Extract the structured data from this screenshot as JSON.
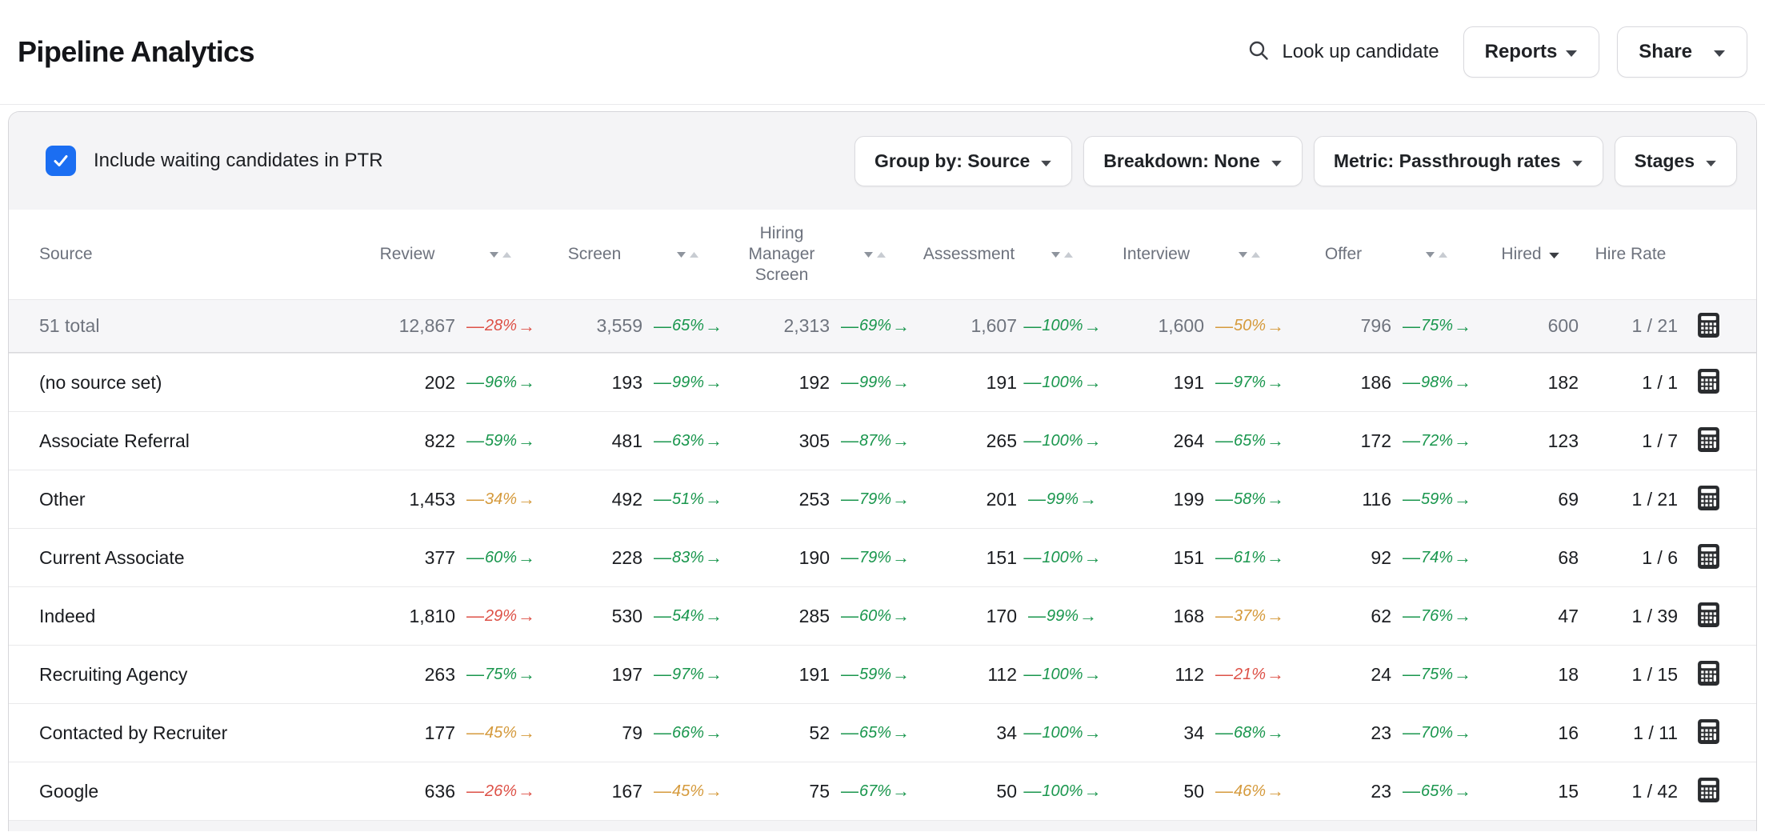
{
  "header": {
    "title": "Pipeline Analytics",
    "search_label": "Look up candidate",
    "reports_label": "Reports",
    "share_label": "Share"
  },
  "filters": {
    "checkbox_label": "Include waiting candidates in PTR",
    "checkbox_checked": true,
    "dropdowns": [
      {
        "label": "Group by: Source"
      },
      {
        "label": "Breakdown: None"
      },
      {
        "label": "Metric: Passthrough rates"
      },
      {
        "label": "Stages"
      }
    ]
  },
  "table": {
    "headers": {
      "source": "Source",
      "stages": [
        "Review",
        "Screen",
        "Hiring Manager Screen",
        "Assessment",
        "Interview",
        "Offer",
        "Hired"
      ],
      "hire_rate": "Hire Rate"
    },
    "sort": {
      "column": "Hired",
      "direction": "desc"
    },
    "tone_colors": {
      "green": "#19964d",
      "orange": "#d59a3c",
      "red": "#dd5147"
    },
    "rows": [
      {
        "source": "51 total",
        "total": true,
        "values": [
          "12,867",
          "3,559",
          "2,313",
          "1,607",
          "1,600",
          "796",
          "600"
        ],
        "ptrs": [
          {
            "pct": "28%",
            "tone": "red"
          },
          {
            "pct": "65%",
            "tone": "green"
          },
          {
            "pct": "69%",
            "tone": "green"
          },
          {
            "pct": "100%",
            "tone": "green"
          },
          {
            "pct": "50%",
            "tone": "orange"
          },
          {
            "pct": "75%",
            "tone": "green"
          }
        ],
        "hire_rate": "1 / 21"
      },
      {
        "source": "(no source set)",
        "total": false,
        "values": [
          "202",
          "193",
          "192",
          "191",
          "191",
          "186",
          "182"
        ],
        "ptrs": [
          {
            "pct": "96%",
            "tone": "green"
          },
          {
            "pct": "99%",
            "tone": "green"
          },
          {
            "pct": "99%",
            "tone": "green"
          },
          {
            "pct": "100%",
            "tone": "green"
          },
          {
            "pct": "97%",
            "tone": "green"
          },
          {
            "pct": "98%",
            "tone": "green"
          }
        ],
        "hire_rate": "1 / 1"
      },
      {
        "source": "Associate Referral",
        "total": false,
        "values": [
          "822",
          "481",
          "305",
          "265",
          "264",
          "172",
          "123"
        ],
        "ptrs": [
          {
            "pct": "59%",
            "tone": "green"
          },
          {
            "pct": "63%",
            "tone": "green"
          },
          {
            "pct": "87%",
            "tone": "green"
          },
          {
            "pct": "100%",
            "tone": "green"
          },
          {
            "pct": "65%",
            "tone": "green"
          },
          {
            "pct": "72%",
            "tone": "green"
          }
        ],
        "hire_rate": "1 / 7"
      },
      {
        "source": "Other",
        "total": false,
        "values": [
          "1,453",
          "492",
          "253",
          "201",
          "199",
          "116",
          "69"
        ],
        "ptrs": [
          {
            "pct": "34%",
            "tone": "orange"
          },
          {
            "pct": "51%",
            "tone": "green"
          },
          {
            "pct": "79%",
            "tone": "green"
          },
          {
            "pct": "99%",
            "tone": "green"
          },
          {
            "pct": "58%",
            "tone": "green"
          },
          {
            "pct": "59%",
            "tone": "green"
          }
        ],
        "hire_rate": "1 / 21"
      },
      {
        "source": "Current Associate",
        "total": false,
        "values": [
          "377",
          "228",
          "190",
          "151",
          "151",
          "92",
          "68"
        ],
        "ptrs": [
          {
            "pct": "60%",
            "tone": "green"
          },
          {
            "pct": "83%",
            "tone": "green"
          },
          {
            "pct": "79%",
            "tone": "green"
          },
          {
            "pct": "100%",
            "tone": "green"
          },
          {
            "pct": "61%",
            "tone": "green"
          },
          {
            "pct": "74%",
            "tone": "green"
          }
        ],
        "hire_rate": "1 / 6"
      },
      {
        "source": "Indeed",
        "total": false,
        "values": [
          "1,810",
          "530",
          "285",
          "170",
          "168",
          "62",
          "47"
        ],
        "ptrs": [
          {
            "pct": "29%",
            "tone": "red"
          },
          {
            "pct": "54%",
            "tone": "green"
          },
          {
            "pct": "60%",
            "tone": "green"
          },
          {
            "pct": "99%",
            "tone": "green"
          },
          {
            "pct": "37%",
            "tone": "orange"
          },
          {
            "pct": "76%",
            "tone": "green"
          }
        ],
        "hire_rate": "1 / 39"
      },
      {
        "source": "Recruiting Agency",
        "total": false,
        "values": [
          "263",
          "197",
          "191",
          "112",
          "112",
          "24",
          "18"
        ],
        "ptrs": [
          {
            "pct": "75%",
            "tone": "green"
          },
          {
            "pct": "97%",
            "tone": "green"
          },
          {
            "pct": "59%",
            "tone": "green"
          },
          {
            "pct": "100%",
            "tone": "green"
          },
          {
            "pct": "21%",
            "tone": "red"
          },
          {
            "pct": "75%",
            "tone": "green"
          }
        ],
        "hire_rate": "1 / 15"
      },
      {
        "source": "Contacted by Recruiter",
        "total": false,
        "values": [
          "177",
          "79",
          "52",
          "34",
          "34",
          "23",
          "16"
        ],
        "ptrs": [
          {
            "pct": "45%",
            "tone": "orange"
          },
          {
            "pct": "66%",
            "tone": "green"
          },
          {
            "pct": "65%",
            "tone": "green"
          },
          {
            "pct": "100%",
            "tone": "green"
          },
          {
            "pct": "68%",
            "tone": "green"
          },
          {
            "pct": "70%",
            "tone": "green"
          }
        ],
        "hire_rate": "1 / 11"
      },
      {
        "source": "Google",
        "total": false,
        "values": [
          "636",
          "167",
          "75",
          "50",
          "50",
          "23",
          "15"
        ],
        "ptrs": [
          {
            "pct": "26%",
            "tone": "red"
          },
          {
            "pct": "45%",
            "tone": "orange"
          },
          {
            "pct": "67%",
            "tone": "green"
          },
          {
            "pct": "100%",
            "tone": "green"
          },
          {
            "pct": "46%",
            "tone": "orange"
          },
          {
            "pct": "65%",
            "tone": "green"
          }
        ],
        "hire_rate": "1 / 42"
      }
    ]
  },
  "colors": {
    "accent": "#1b6ef2"
  }
}
